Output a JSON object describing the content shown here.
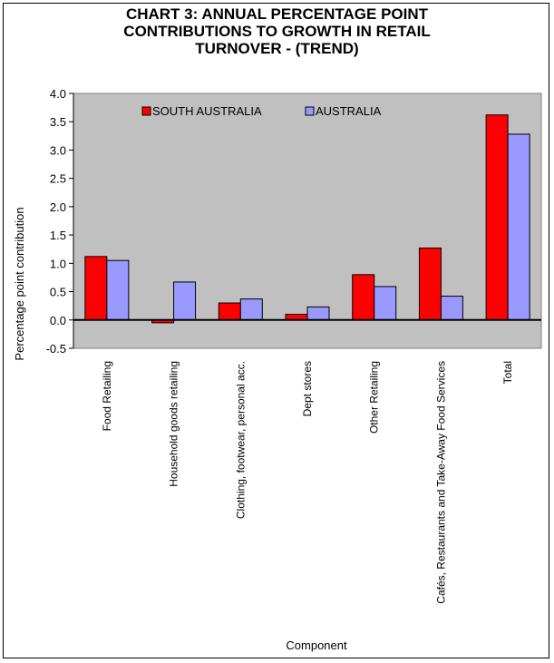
{
  "chart_data": {
    "type": "bar",
    "title_lines": [
      "CHART 3: ANNUAL PERCENTAGE POINT",
      "CONTRIBUTIONS TO GROWTH IN RETAIL",
      "TURNOVER - (TREND)"
    ],
    "xlabel": "Component",
    "ylabel": "Percentage point contribution",
    "ylim": [
      -0.5,
      4.0
    ],
    "yticks": [
      "4.0",
      "3.5",
      "3.0",
      "2.5",
      "2.0",
      "1.5",
      "1.0",
      "0.5",
      "0.0",
      "-0.5"
    ],
    "ytick_values": [
      4.0,
      3.5,
      3.0,
      2.5,
      2.0,
      1.5,
      1.0,
      0.5,
      0.0,
      -0.5
    ],
    "categories": [
      "Food Retailing",
      "Household goods retailing",
      "Clothing, footwear, personal acc.",
      "Dept stores",
      "Other Retailing",
      "Cafés, Restaurants and Take-Away Food Services",
      "Total"
    ],
    "series": [
      {
        "name": "SOUTH AUSTRALIA",
        "color": "#ff0000",
        "values": [
          1.12,
          -0.05,
          0.3,
          0.1,
          0.8,
          1.27,
          3.62
        ]
      },
      {
        "name": "AUSTRALIA",
        "color": "#9999ff",
        "values": [
          1.05,
          0.67,
          0.37,
          0.23,
          0.59,
          0.42,
          3.28
        ]
      }
    ],
    "legend_position": "top-left",
    "grid": false,
    "plot_background": "#c0c0c0"
  }
}
